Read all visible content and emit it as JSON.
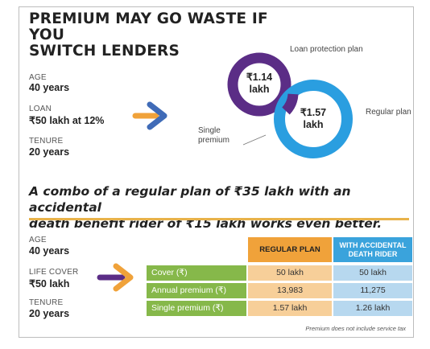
{
  "title_line1": "PREMIUM MAY GO WASTE IF YOU",
  "title_line2": "SWITCH LENDERS",
  "top_inputs": {
    "age_label": "AGE",
    "age_value": "40 years",
    "loan_label": "LOAN",
    "loan_value": "₹50 lakh at 12%",
    "tenure_label": "TENURE",
    "tenure_value": "20 years"
  },
  "rings": {
    "loan_protection_label": "Loan protection plan",
    "loan_protection_value_line1": "₹1.14",
    "loan_protection_value_line2": "lakh",
    "regular_label": "Regular plan",
    "regular_value_line1": "₹1.57",
    "regular_value_line2": "lakh",
    "single_premium_line1": "Single",
    "single_premium_line2": "premium",
    "colors": {
      "loan_protection": "#5b2d86",
      "regular": "#2a9ee0"
    }
  },
  "combo_line1": "A combo of a regular plan of ₹35 lakh with an accidental",
  "combo_line2": "death benefit rider of ₹15 lakh works even better.",
  "bottom_inputs": {
    "age_label": "AGE",
    "age_value": "40 years",
    "cover_label": "LIFE COVER",
    "cover_value": "₹50 lakh",
    "tenure_label": "TENURE",
    "tenure_value": "20 years"
  },
  "table": {
    "headers": {
      "regular": "REGULAR PLAN",
      "accidental": "WITH ACCIDENTAL DEATH RIDER"
    },
    "rows": [
      {
        "label": "Cover (₹)",
        "regular": "50 lakh",
        "accidental": "50 lakh"
      },
      {
        "label": "Annual premium (₹)",
        "regular": "13,983",
        "accidental": "11,275"
      },
      {
        "label": "Single premium (₹)",
        "regular": "1.57 lakh",
        "accidental": "1.26 lakh"
      }
    ]
  },
  "footnote": "Premium does not include service tax",
  "accent_colors": {
    "orange": "#f0a23a",
    "green": "#86b84a",
    "blue": "#3aa3dc",
    "purple": "#5b2d86"
  }
}
